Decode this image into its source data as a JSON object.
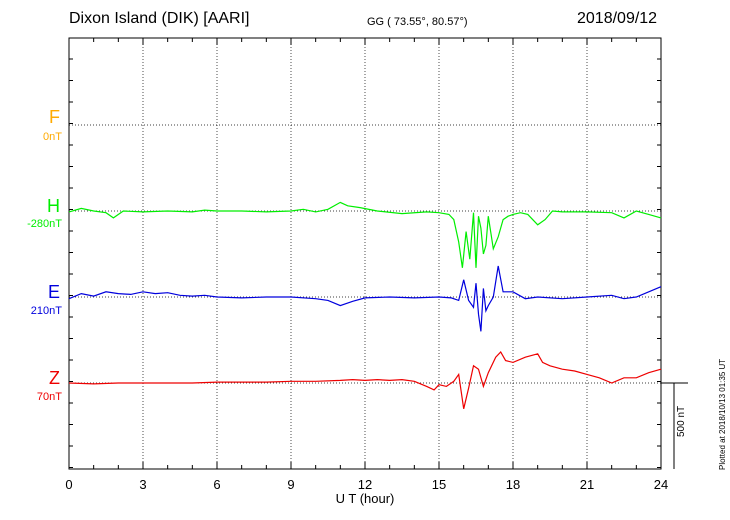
{
  "header": {
    "station": "Dixon Island (DIK)  [AARI]",
    "coords": "GG ( 73.55°,  80.57°)",
    "date": "2018/09/12"
  },
  "x_label": "U T (hour)",
  "scale_label": "500 nT",
  "plotted_note": "Plotted at 2018/10/13 01:35 UT",
  "colors": {
    "F": "#ffaa00",
    "H": "#00ee00",
    "E": "#0000dd",
    "Z": "#ee0000"
  },
  "chart_data": {
    "type": "line",
    "x_range": [
      0,
      24
    ],
    "x_ticks": [
      "0",
      "3",
      "6",
      "9",
      "12",
      "15",
      "18",
      "21",
      "24"
    ],
    "x_label": "U T (hour)",
    "scale_bar_nT": 500,
    "grid": true,
    "series": [
      {
        "name": "F",
        "baseline_label": "0nT",
        "x": [],
        "y": []
      },
      {
        "name": "H",
        "baseline_label": "-280nT",
        "x": [
          0,
          0.5,
          1,
          1.5,
          1.8,
          2.2,
          3,
          4,
          5,
          5.5,
          6,
          7,
          8,
          9,
          9.5,
          10,
          10.5,
          11,
          11.3,
          11.8,
          12.5,
          13.5,
          14.5,
          15,
          15.4,
          15.6,
          15.8,
          15.95,
          16.1,
          16.25,
          16.4,
          16.5,
          16.6,
          16.7,
          16.8,
          16.9,
          17,
          17.2,
          17.4,
          17.6,
          17.8,
          18,
          18.3,
          18.6,
          19,
          19.3,
          19.6,
          20,
          21,
          22,
          22.5,
          23,
          23.5,
          24
        ],
        "y": [
          -5,
          15,
          0,
          -10,
          -40,
          0,
          -5,
          0,
          -5,
          5,
          0,
          0,
          -5,
          0,
          10,
          -5,
          10,
          50,
          30,
          20,
          0,
          -15,
          -5,
          -10,
          -20,
          -50,
          -180,
          -330,
          -120,
          -280,
          -10,
          -330,
          -30,
          -100,
          -250,
          -200,
          -30,
          -220,
          -150,
          -50,
          -30,
          -20,
          -10,
          -20,
          -80,
          -50,
          0,
          -5,
          -5,
          -10,
          -40,
          0,
          -20,
          -40
        ]
      },
      {
        "name": "E",
        "baseline_label": "210nT",
        "x": [
          0,
          0.5,
          1,
          1.5,
          2,
          2.5,
          3,
          3.5,
          4,
          4.5,
          5,
          5.5,
          6,
          7,
          8,
          9,
          10,
          10.5,
          11,
          11.5,
          12,
          13,
          14,
          15,
          15.5,
          15.8,
          16,
          16.2,
          16.4,
          16.5,
          16.6,
          16.7,
          16.8,
          16.9,
          17,
          17.2,
          17.4,
          17.6,
          18,
          18.5,
          19,
          20,
          21,
          22,
          22.5,
          23,
          24
        ],
        "y": [
          -10,
          20,
          5,
          30,
          20,
          15,
          30,
          20,
          25,
          10,
          5,
          10,
          0,
          -5,
          0,
          0,
          -10,
          -20,
          -50,
          -25,
          -5,
          0,
          -5,
          0,
          -5,
          -20,
          100,
          -20,
          -60,
          80,
          -100,
          -200,
          50,
          -80,
          -50,
          0,
          180,
          30,
          30,
          -10,
          0,
          -10,
          0,
          10,
          -10,
          0,
          60
        ]
      },
      {
        "name": "Z",
        "baseline_label": "70nT",
        "x": [
          0,
          1,
          2,
          3,
          4,
          5,
          6,
          7,
          8,
          9,
          10,
          11,
          11.5,
          12,
          12.5,
          13,
          13.5,
          14,
          14.5,
          14.8,
          15,
          15.3,
          15.6,
          15.8,
          16,
          16.2,
          16.4,
          16.6,
          16.8,
          17,
          17.3,
          17.5,
          17.7,
          18,
          18.5,
          19,
          19.2,
          19.5,
          20,
          20.5,
          21,
          21.5,
          22,
          22.5,
          23,
          23.5,
          24
        ],
        "y": [
          0,
          -5,
          0,
          0,
          0,
          0,
          5,
          5,
          5,
          10,
          10,
          15,
          20,
          15,
          20,
          15,
          20,
          10,
          -20,
          -40,
          -10,
          -20,
          10,
          50,
          -150,
          -30,
          100,
          80,
          -20,
          60,
          150,
          180,
          130,
          120,
          150,
          170,
          120,
          100,
          80,
          70,
          50,
          30,
          0,
          30,
          30,
          60,
          80
        ]
      }
    ]
  }
}
